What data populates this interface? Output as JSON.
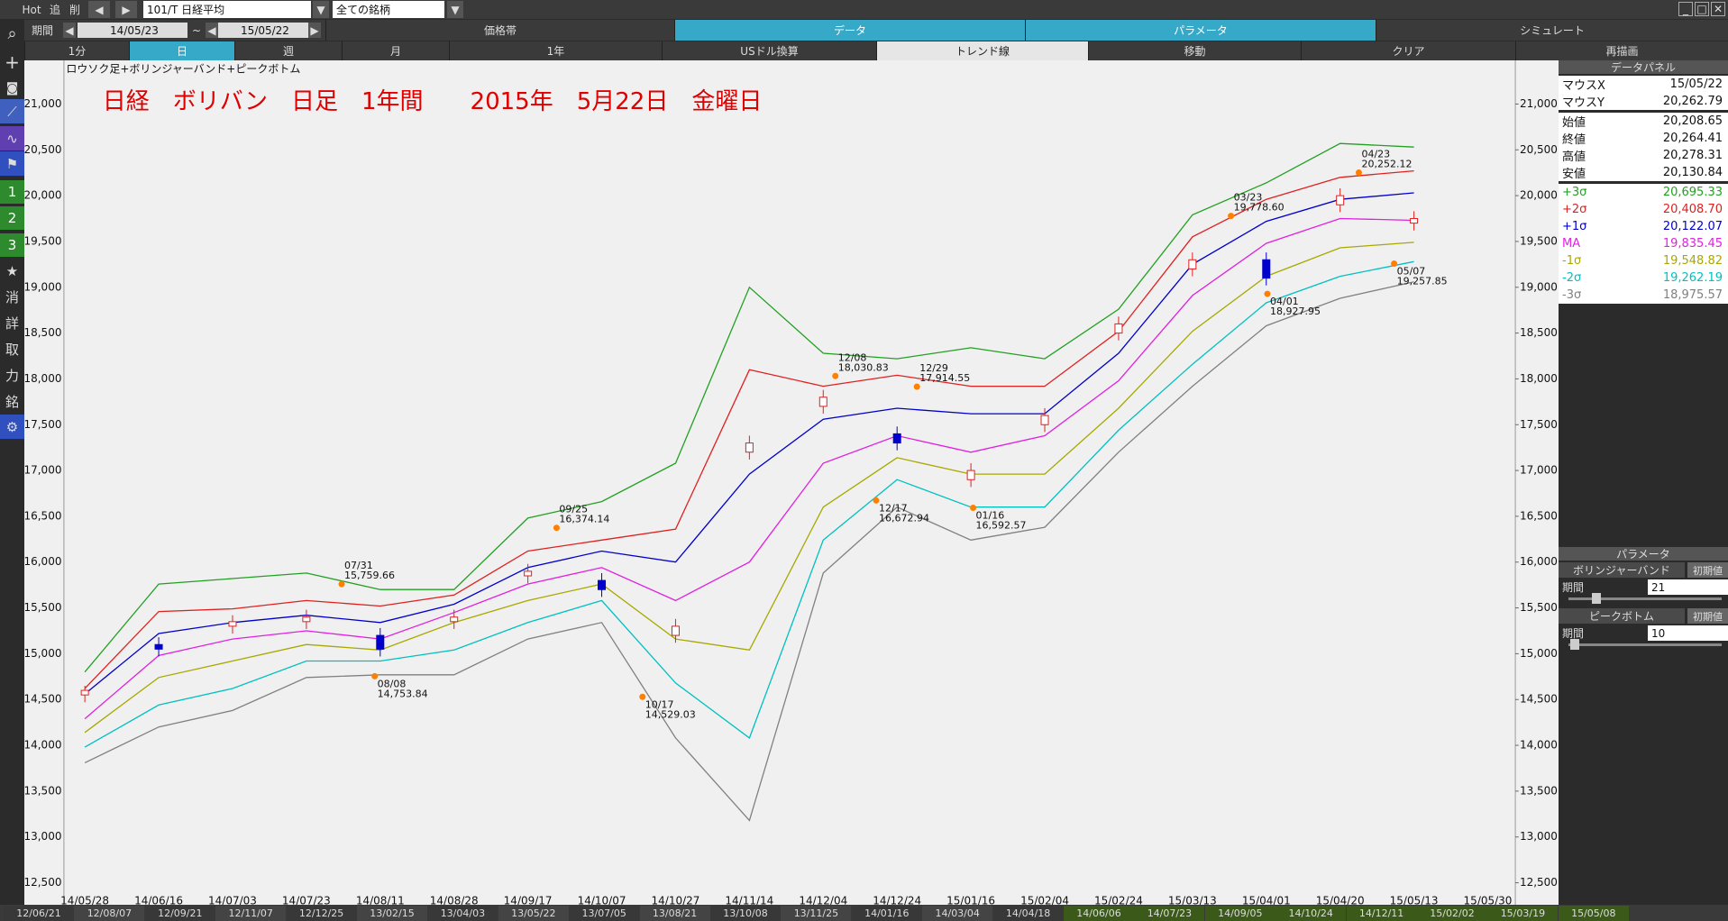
{
  "toolbar": {
    "hot": "Hot",
    "add": "追",
    "delete": "削",
    "symbol": "101/T 日経平均",
    "universe": "全ての銘柄"
  },
  "period": {
    "label": "期間",
    "from": "14/05/23",
    "sep": "~",
    "to": "15/05/22"
  },
  "tabs": [
    "価格帯",
    "データ",
    "パラメータ",
    "シミュレート"
  ],
  "buttons": [
    "1分",
    "日",
    "週",
    "月",
    "1年",
    "USドル換算",
    "トレンド線",
    "移動",
    "クリア",
    "再描画"
  ],
  "sidebar": [
    "1",
    "2",
    "3",
    "★",
    "消",
    "詳",
    "取",
    "力",
    "銘"
  ],
  "data_panel": {
    "title": "データパネル",
    "rows": [
      [
        "マウスX",
        "15/05/22"
      ],
      [
        "マウスY",
        "20,262.79"
      ],
      [
        "始値",
        "20,208.65"
      ],
      [
        "終値",
        "20,264.41"
      ],
      [
        "高値",
        "20,278.31"
      ],
      [
        "安値",
        "20,130.84"
      ]
    ],
    "bands": [
      "20,695.33",
      "20,408.70",
      "20,122.07",
      "19,835.45",
      "19,548.82",
      "19,262.19",
      "18,975.57"
    ]
  },
  "param_panel": {
    "title": "パラメータ",
    "groups": [
      {
        "name": "ボリンジャーバンド",
        "reset": "初期値",
        "field": "期間",
        "value": "21"
      },
      {
        "name": "ピークボトム",
        "reset": "初期値",
        "field": "期間",
        "value": "10"
      }
    ]
  },
  "timeline": [
    "12/06/21",
    "12/08/07",
    "12/09/21",
    "12/11/07",
    "12/12/25",
    "13/02/15",
    "13/04/03",
    "13/05/22",
    "13/07/05",
    "13/08/21",
    "13/10/08",
    "13/11/25",
    "14/01/16",
    "14/03/04",
    "14/04/18",
    "14/06/06",
    "14/07/23",
    "14/09/05",
    "14/10/24",
    "14/12/11",
    "15/02/02",
    "15/03/19",
    "15/05/08"
  ],
  "chart_data": {
    "type": "candlestick",
    "subtitle": "ロウソク足+ボリンジャーバンド+ピークボトム",
    "title": "日経　ボリバン　日足　1年間　　2015年　5月22日　金曜日",
    "categories": [
      "14/05/28",
      "14/06/16",
      "14/07/03",
      "14/07/23",
      "14/08/11",
      "14/08/28",
      "14/09/17",
      "14/10/07",
      "14/10/27",
      "14/11/14",
      "14/12/04",
      "14/12/24",
      "15/01/16",
      "15/02/04",
      "15/02/24",
      "15/03/13",
      "15/04/01",
      "15/04/20",
      "15/05/13",
      "15/05/30"
    ],
    "open": [
      14550,
      15100,
      15300,
      15350,
      15200,
      15350,
      15850,
      15800,
      15200,
      17200,
      17700,
      17400,
      16900,
      17500,
      18500,
      19200,
      19300,
      19900,
      19700,
      null
    ],
    "close": [
      14600,
      15050,
      15350,
      15400,
      15050,
      15400,
      15900,
      15700,
      15300,
      17300,
      17800,
      17300,
      17000,
      17600,
      18600,
      19300,
      19100,
      20000,
      19750,
      null
    ],
    "high": [
      14650,
      15180,
      15420,
      15480,
      15280,
      15480,
      15980,
      15880,
      15380,
      17380,
      17880,
      17480,
      17080,
      17680,
      18680,
      19380,
      19380,
      20080,
      19830,
      null
    ],
    "low": [
      14470,
      14970,
      15220,
      15270,
      14970,
      15270,
      15770,
      15620,
      15120,
      17120,
      17620,
      17220,
      16820,
      17420,
      18420,
      19120,
      19020,
      19820,
      19620,
      null
    ],
    "up_color": "#e02020",
    "down_color": "#0000cc",
    "series": [
      {
        "name": "+3σ",
        "color": "#22a022",
        "values": [
          14800,
          15760,
          15820,
          15880,
          15700,
          15700,
          16480,
          16660,
          17080,
          19000,
          18280,
          18220,
          18340,
          18220,
          18760,
          19790,
          20140,
          20570,
          20530,
          null
        ]
      },
      {
        "name": "+2σ",
        "color": "#e02020",
        "values": [
          14620,
          15460,
          15490,
          15580,
          15520,
          15640,
          16120,
          16240,
          16360,
          18100,
          17920,
          18040,
          17920,
          17920,
          18520,
          19550,
          19960,
          20200,
          20270,
          null
        ]
      },
      {
        "name": "+1σ",
        "color": "#0000cc",
        "values": [
          14560,
          15220,
          15340,
          15420,
          15340,
          15540,
          15940,
          16120,
          16000,
          16960,
          17560,
          17680,
          17620,
          17620,
          18280,
          19250,
          19720,
          19960,
          20030,
          null
        ]
      },
      {
        "name": "MA",
        "color": "#e020e0",
        "values": [
          14290,
          14980,
          15160,
          15250,
          15160,
          15450,
          15760,
          15940,
          15580,
          16000,
          17080,
          17380,
          17200,
          17380,
          17980,
          18910,
          19480,
          19750,
          19730,
          null
        ]
      },
      {
        "name": "-1σ",
        "color": "#a8a800",
        "values": [
          14140,
          14740,
          14920,
          15100,
          15040,
          15340,
          15580,
          15760,
          15160,
          15040,
          16600,
          17140,
          16960,
          16960,
          17680,
          18520,
          19120,
          19430,
          19490,
          null
        ]
      },
      {
        "name": "-2σ",
        "color": "#00c0c0",
        "values": [
          13980,
          14440,
          14620,
          14920,
          14920,
          15040,
          15340,
          15580,
          14680,
          14080,
          16240,
          16900,
          16600,
          16600,
          17440,
          18160,
          18830,
          19120,
          19280,
          null
        ]
      },
      {
        "name": "-3σ",
        "color": "#808080",
        "values": [
          13810,
          14200,
          14380,
          14740,
          14770,
          14770,
          15160,
          15340,
          14080,
          13180,
          15880,
          16600,
          16240,
          16380,
          17200,
          17920,
          18580,
          18880,
          19060,
          null
        ]
      }
    ],
    "annotations": [
      {
        "label": "07/31",
        "value": 15759.66,
        "value_label": "15,759.66"
      },
      {
        "label": "08/08",
        "value": 14753.84,
        "value_label": "14,753.84"
      },
      {
        "label": "09/25",
        "value": 16374.14,
        "value_label": "16,374.14"
      },
      {
        "label": "10/17",
        "value": 14529.03,
        "value_label": "14,529.03"
      },
      {
        "label": "12/08",
        "value": 18030.83,
        "value_label": "18,030.83"
      },
      {
        "label": "12/17",
        "value": 16672.94,
        "value_label": "16,672.94"
      },
      {
        "label": "12/29",
        "value": 17914.55,
        "value_label": "17,914.55"
      },
      {
        "label": "01/16",
        "value": 16592.57,
        "value_label": "16,592.57"
      },
      {
        "label": "03/23",
        "value": 19778.6,
        "value_label": "19,778.60"
      },
      {
        "label": "04/01",
        "value": 18927.95,
        "value_label": "18,927.95"
      },
      {
        "label": "04/23",
        "value": 20252.12,
        "value_label": "20,252.12"
      },
      {
        "label": "05/07",
        "value": 19257.85,
        "value_label": "19,257.85"
      }
    ],
    "ylim": [
      12250,
      21450
    ],
    "yticks": [
      {
        "value": 12500,
        "label": "12,500"
      },
      {
        "value": 13000,
        "label": "13,000"
      },
      {
        "value": 13500,
        "label": "13,500"
      },
      {
        "value": 14000,
        "label": "14,000"
      },
      {
        "value": 14500,
        "label": "14,500"
      },
      {
        "value": 15000,
        "label": "15,000"
      },
      {
        "value": 15500,
        "label": "15,500"
      },
      {
        "value": 16000,
        "label": "16,000"
      },
      {
        "value": 16500,
        "label": "16,500"
      },
      {
        "value": 17000,
        "label": "17,000"
      },
      {
        "value": 17500,
        "label": "17,500"
      },
      {
        "value": 18000,
        "label": "18,000"
      },
      {
        "value": 18500,
        "label": "18,500"
      },
      {
        "value": 19000,
        "label": "19,000"
      },
      {
        "value": 19500,
        "label": "19,500"
      },
      {
        "value": 20000,
        "label": "20,000"
      },
      {
        "value": 20500,
        "label": "20,500"
      },
      {
        "value": 21000,
        "label": "21,000"
      }
    ]
  }
}
